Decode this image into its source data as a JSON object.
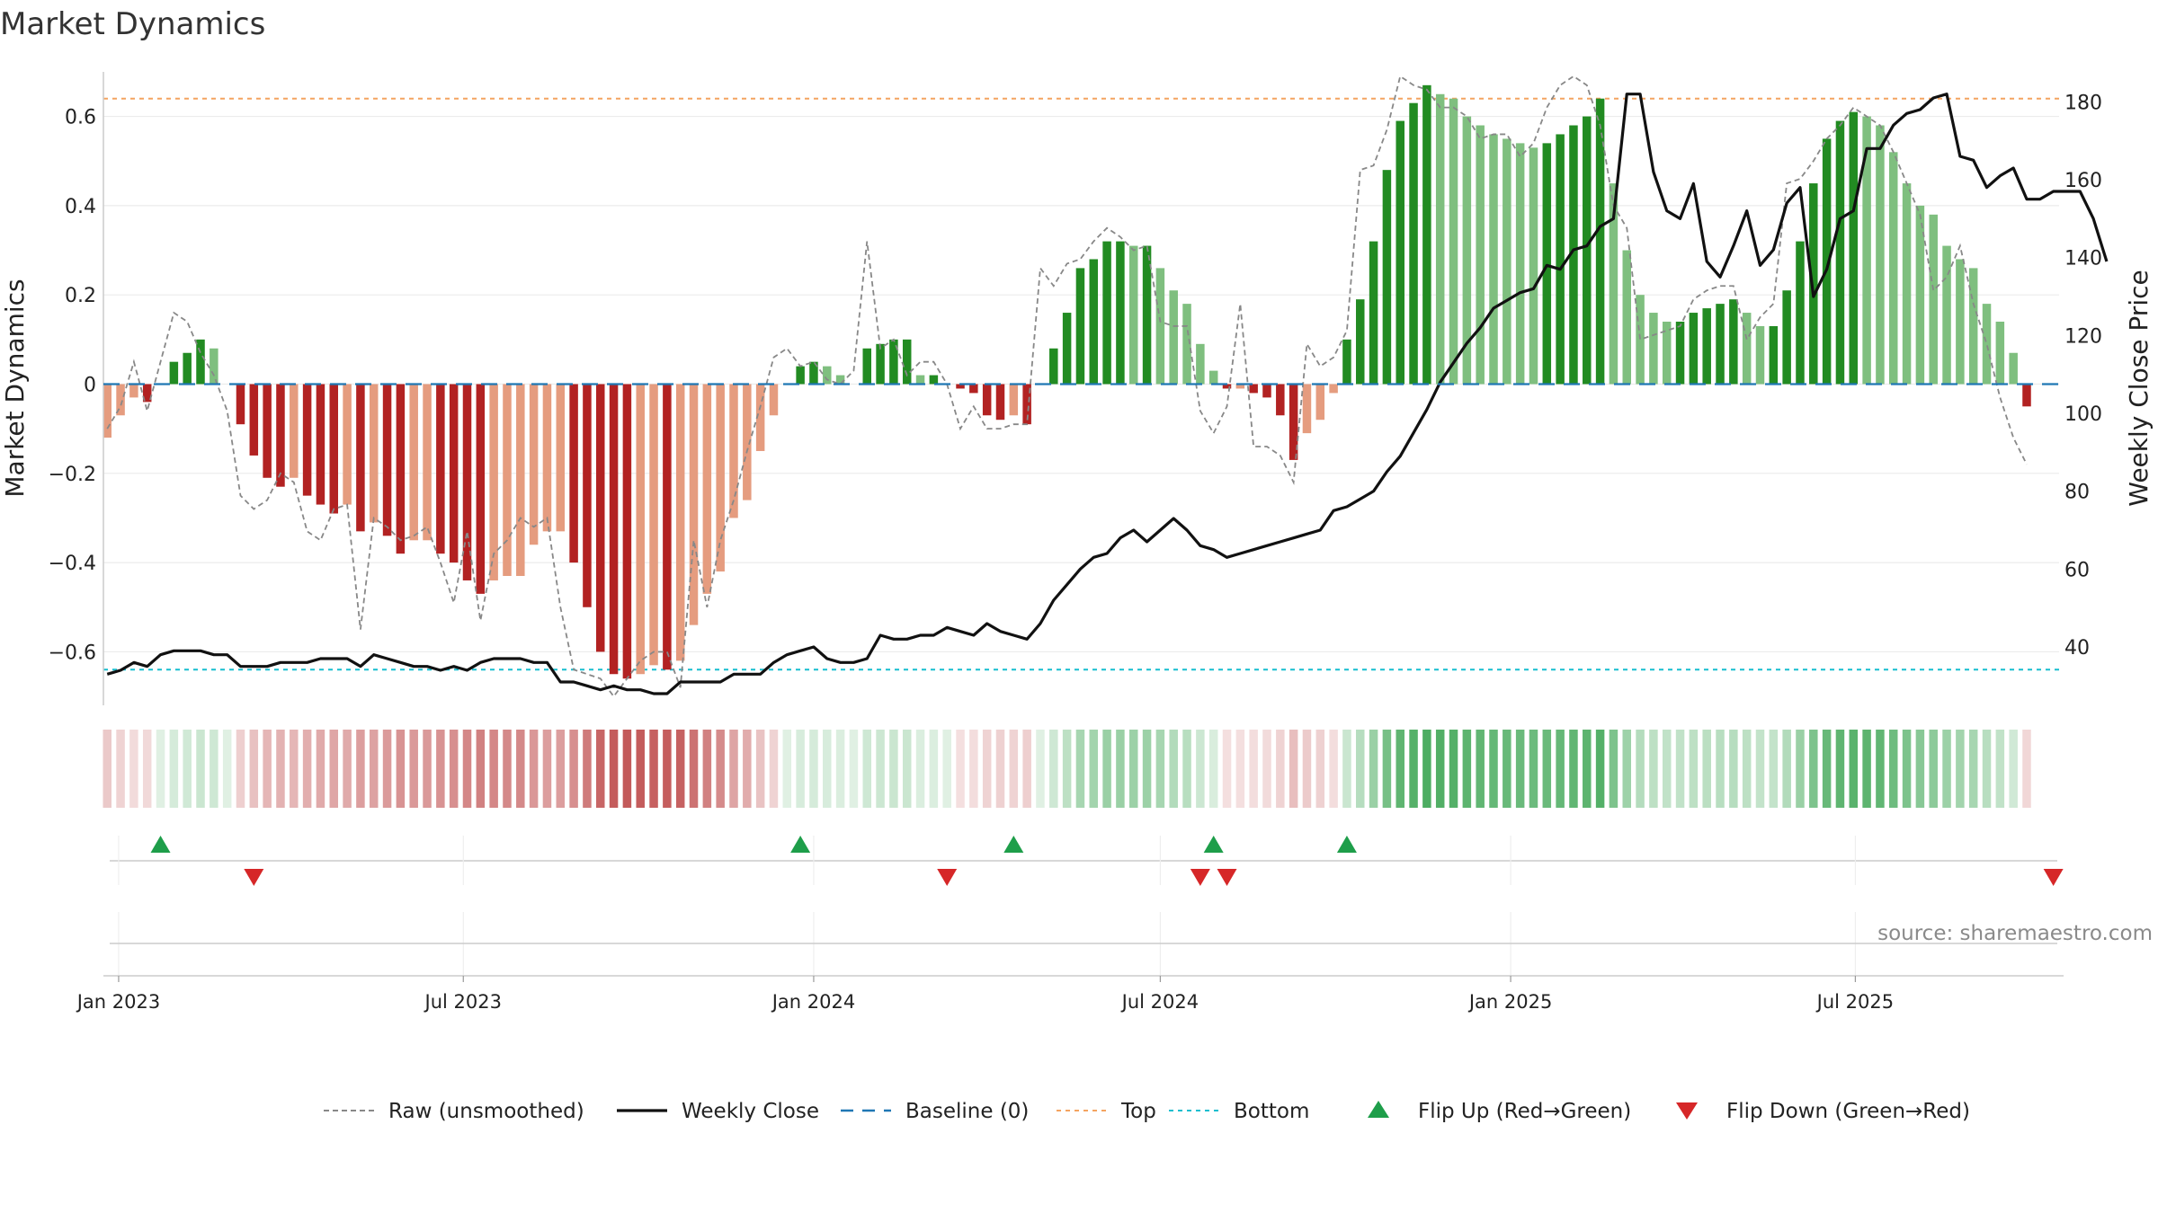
{
  "chart_data": {
    "type": "bar",
    "title": "Market Dynamics",
    "ylabel_left": "Market Dynamics",
    "ylabel_right": "Weekly Close Price",
    "ylim_left": [
      -0.72,
      0.72
    ],
    "ylim_right": [
      25,
      190
    ],
    "yticks_left": [
      -0.6,
      -0.4,
      -0.2,
      0,
      0.2,
      0.4,
      0.6
    ],
    "ytick_labels_left": [
      "−0.6",
      "−0.4",
      "−0.2",
      "0",
      "0.2",
      "0.4",
      "0.6"
    ],
    "yticks_right": [
      40,
      60,
      80,
      100,
      120,
      140,
      160,
      180
    ],
    "ytick_labels_right": [
      "40",
      "60",
      "80",
      "100",
      "120",
      "140",
      "160",
      "180"
    ],
    "x_start": "2022-12-26",
    "x_end": "2025-10-13",
    "x_range": [
      "2022-12-24",
      "2025-10-16"
    ],
    "x_ticks": [
      {
        "date": "2023-01-01",
        "label": "Jan 2023"
      },
      {
        "date": "2023-07-01",
        "label": "Jul 2023"
      },
      {
        "date": "2024-01-01",
        "label": "Jan 2024"
      },
      {
        "date": "2024-07-01",
        "label": "Jul 2024"
      },
      {
        "date": "2025-01-01",
        "label": "Jan 2025"
      },
      {
        "date": "2025-07-01",
        "label": "Jul 2025"
      }
    ],
    "top_line": 0.64,
    "bottom_line": -0.64,
    "baseline": 0,
    "series": [
      {
        "name": "Market Dynamics",
        "kind": "bar",
        "values": [
          -0.12,
          -0.07,
          -0.03,
          -0.04,
          0,
          0.05,
          0.07,
          0.1,
          0.08,
          0,
          -0.09,
          -0.16,
          -0.21,
          -0.23,
          -0.21,
          -0.25,
          -0.27,
          -0.29,
          -0.27,
          -0.33,
          -0.31,
          -0.34,
          -0.38,
          -0.35,
          -0.35,
          -0.38,
          -0.4,
          -0.44,
          -0.47,
          -0.44,
          -0.43,
          -0.43,
          -0.36,
          -0.33,
          -0.33,
          -0.4,
          -0.5,
          -0.6,
          -0.65,
          -0.66,
          -0.65,
          -0.63,
          -0.64,
          -0.62,
          -0.54,
          -0.47,
          -0.42,
          -0.3,
          -0.26,
          -0.15,
          -0.07,
          0,
          0.04,
          0.05,
          0.04,
          0.02,
          0,
          0.08,
          0.09,
          0.1,
          0.1,
          0.02,
          0.02,
          0,
          -0.01,
          -0.02,
          -0.07,
          -0.08,
          -0.07,
          -0.09,
          0,
          0.08,
          0.16,
          0.26,
          0.28,
          0.32,
          0.32,
          0.31,
          0.31,
          0.26,
          0.21,
          0.18,
          0.09,
          0.03,
          -0.01,
          -0.01,
          -0.02,
          -0.03,
          -0.07,
          -0.17,
          -0.11,
          -0.08,
          -0.02,
          0.1,
          0.19,
          0.32,
          0.48,
          0.59,
          0.63,
          0.67,
          0.65,
          0.64,
          0.6,
          0.58,
          0.56,
          0.55,
          0.54,
          0.53,
          0.54,
          0.56,
          0.58,
          0.6,
          0.64,
          0.45,
          0.3,
          0.2,
          0.16,
          0.14,
          0.14,
          0.16,
          0.17,
          0.18,
          0.19,
          0.16,
          0.13,
          0.13,
          0.21,
          0.32,
          0.45,
          0.55,
          0.59,
          0.61,
          0.6,
          0.58,
          0.52,
          0.45,
          0.4,
          0.38,
          0.31,
          0.28,
          0.26,
          0.18,
          0.14,
          0.07,
          -0.05
        ]
      },
      {
        "name": "Raw (unsmoothed)",
        "kind": "line",
        "values": [
          -0.1,
          -0.05,
          0.05,
          -0.06,
          0.05,
          0.16,
          0.14,
          0.07,
          0.02,
          -0.06,
          -0.25,
          -0.28,
          -0.26,
          -0.2,
          -0.22,
          -0.33,
          -0.35,
          -0.28,
          -0.27,
          -0.55,
          -0.3,
          -0.32,
          -0.35,
          -0.34,
          -0.32,
          -0.4,
          -0.49,
          -0.33,
          -0.53,
          -0.38,
          -0.35,
          -0.3,
          -0.32,
          -0.3,
          -0.5,
          -0.64,
          -0.65,
          -0.66,
          -0.7,
          -0.66,
          -0.62,
          -0.6,
          -0.6,
          -0.68,
          -0.35,
          -0.5,
          -0.35,
          -0.26,
          -0.15,
          -0.05,
          0.06,
          0.08,
          0.04,
          0.05,
          0.01,
          0,
          0.03,
          0.32,
          0.08,
          0.1,
          0.02,
          0.05,
          0.05,
          0.0,
          -0.1,
          -0.05,
          -0.1,
          -0.1,
          -0.09,
          -0.09,
          0.26,
          0.22,
          0.27,
          0.28,
          0.32,
          0.35,
          0.33,
          0.3,
          0.31,
          0.14,
          0.13,
          0.13,
          -0.06,
          -0.11,
          -0.05,
          0.18,
          -0.14,
          -0.14,
          -0.16,
          -0.22,
          0.09,
          0.04,
          0.06,
          0.12,
          0.48,
          0.49,
          0.57,
          0.69,
          0.67,
          0.66,
          0.62,
          0.62,
          0.6,
          0.55,
          0.56,
          0.56,
          0.51,
          0.54,
          0.62,
          0.67,
          0.69,
          0.67,
          0.58,
          0.4,
          0.35,
          0.1,
          0.11,
          0.12,
          0.13,
          0.19,
          0.21,
          0.22,
          0.22,
          0.1,
          0.15,
          0.18,
          0.45,
          0.46,
          0.5,
          0.55,
          0.58,
          0.62,
          0.6,
          0.58,
          0.52,
          0.45,
          0.38,
          0.21,
          0.24,
          0.31,
          0.18,
          0.09,
          -0.03,
          -0.12,
          -0.18
        ]
      },
      {
        "name": "Weekly Close",
        "kind": "line",
        "axis": "right",
        "values": [
          33,
          34,
          36,
          35,
          38,
          39,
          39,
          39,
          38,
          38,
          35,
          35,
          35,
          36,
          36,
          36,
          37,
          37,
          37,
          35,
          38,
          37,
          36,
          35,
          35,
          34,
          35,
          34,
          36,
          37,
          37,
          37,
          36,
          36,
          31,
          31,
          30,
          29,
          30,
          29,
          29,
          28,
          28,
          31,
          31,
          31,
          31,
          33,
          33,
          33,
          36,
          38,
          39,
          40,
          37,
          36,
          36,
          37,
          43,
          42,
          42,
          43,
          43,
          45,
          44,
          43,
          46,
          44,
          43,
          42,
          46,
          52,
          56,
          60,
          63,
          64,
          68,
          70,
          67,
          70,
          73,
          70,
          66,
          65,
          63,
          64,
          65,
          66,
          67,
          68,
          69,
          70,
          75,
          76,
          78,
          80,
          85,
          89,
          95,
          101,
          108,
          113,
          118,
          122,
          127,
          129,
          131,
          132,
          138,
          137,
          142,
          143,
          148,
          150,
          182,
          182,
          162,
          152,
          150,
          159,
          139,
          135,
          143,
          152,
          138,
          142,
          154,
          158,
          130,
          137,
          150,
          152,
          168,
          168,
          174,
          177,
          178,
          181,
          182,
          166,
          165,
          158,
          161,
          163,
          155,
          155,
          157,
          157,
          157,
          150,
          139
        ]
      }
    ],
    "flip_up_dates": [
      "2023-01-23",
      "2023-12-25",
      "2024-04-15",
      "2024-07-29",
      "2024-10-07"
    ],
    "flip_down_dates": [
      "2023-03-13",
      "2024-03-11",
      "2024-07-22",
      "2024-08-05",
      "2025-10-13"
    ],
    "legend": {
      "placement": "bottom",
      "entries": [
        {
          "label": "Raw (unsmoothed)",
          "style": "dashed-gray"
        },
        {
          "label": "Weekly Close",
          "style": "solid-black"
        },
        {
          "label": "Baseline (0)",
          "style": "dashed-blue"
        },
        {
          "label": "Top",
          "style": "dotted-orange"
        },
        {
          "label": "Bottom",
          "style": "dotted-cyan"
        },
        {
          "label": "Flip Up (Red→Green)",
          "style": "triangle-up-green"
        },
        {
          "label": "Flip Down (Green→Red)",
          "style": "triangle-down-red"
        }
      ]
    },
    "source_text": "source: sharemaestro.com",
    "grid": true
  },
  "colors": {
    "pos_strong": "#228b22",
    "pos_weak": "#7fbf7f",
    "neg_strong": "#b22222",
    "neg_weak": "#e59c7f",
    "raw_line": "#888888",
    "close_line": "#111111",
    "baseline": "#1f77b4",
    "top": "#f4a460",
    "bottom": "#17becf",
    "flip_up": "#1e9e4a",
    "flip_down": "#d62728"
  }
}
